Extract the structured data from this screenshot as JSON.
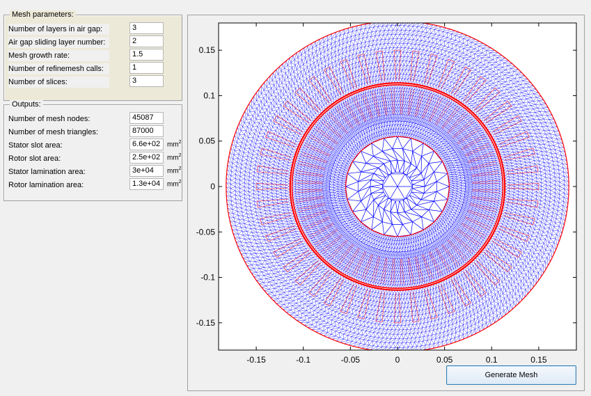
{
  "mesh_parameters": {
    "title": "Mesh parameters:",
    "fields": [
      {
        "label": "Number of layers in air gap:",
        "value": "3"
      },
      {
        "label": "Air gap sliding layer number:",
        "value": "2"
      },
      {
        "label": "Mesh growth rate:",
        "value": "1.5"
      },
      {
        "label": "Number of refinemesh calls:",
        "value": "1"
      },
      {
        "label": "Number of slices:",
        "value": "3"
      }
    ]
  },
  "outputs": {
    "title": "Outputs:",
    "fields": [
      {
        "label": "Number of mesh nodes:",
        "value": "45087",
        "unit": ""
      },
      {
        "label": "Number of mesh triangles:",
        "value": "87000",
        "unit": ""
      },
      {
        "label": "Stator slot area:",
        "value": "6.6e+02",
        "unit": "mm",
        "unit_sup": "2"
      },
      {
        "label": "Rotor slot area:",
        "value": "2.5e+02",
        "unit": "mm",
        "unit_sup": "2"
      },
      {
        "label": "Stator lamination area:",
        "value": "3e+04",
        "unit": "mm",
        "unit_sup": "2"
      },
      {
        "label": "Rotor lamination area:",
        "value": "1.3e+04",
        "unit": "mm",
        "unit_sup": "2"
      }
    ]
  },
  "generate_button_label": "Generate Mesh",
  "colors": {
    "mesh_lines": "#0000ff",
    "boundary_lines": "#ff0000",
    "button_border": "#3c7fb1"
  },
  "chart_data": {
    "type": "mesh-plot",
    "xlim": [
      -0.19,
      0.19
    ],
    "ylim": [
      -0.18,
      0.18
    ],
    "x_ticks": [
      -0.15,
      -0.1,
      -0.05,
      0,
      0.05,
      0.1,
      0.15
    ],
    "x_tick_labels": [
      "-0.15",
      "-0.1",
      "-0.05",
      "0",
      "0.05",
      "0.1",
      "0.15"
    ],
    "y_ticks": [
      0.15,
      0.1,
      0.05,
      0,
      -0.05,
      -0.1,
      -0.15
    ],
    "y_tick_labels": [
      "0.15",
      "0.1",
      "0.05",
      "0",
      "-0.05",
      "-0.1",
      "-0.15"
    ],
    "stator_outer_radius": 0.182,
    "stator_inner_radius": 0.114,
    "rotor_outer_radius": 0.112,
    "shaft_radius": 0.055,
    "stator_slots": 48,
    "rotor_slots": 64,
    "grid": false
  }
}
